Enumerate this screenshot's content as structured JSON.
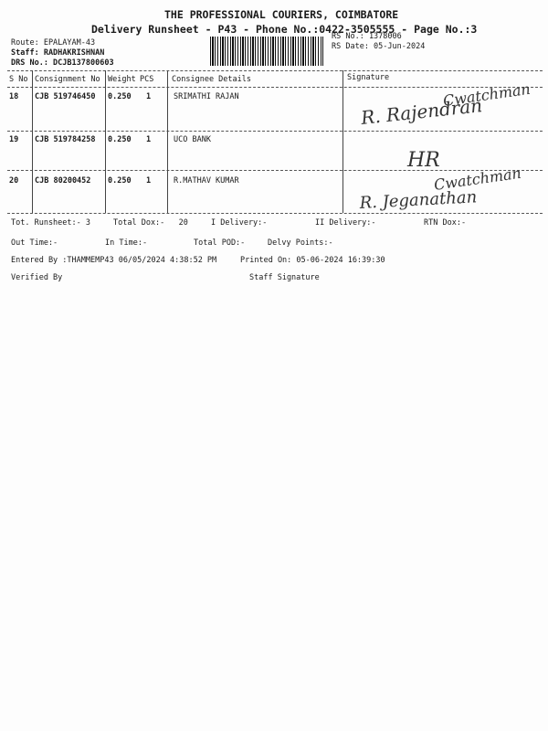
{
  "header": {
    "company": "THE PROFESSIONAL COURIERS, COIMBATORE",
    "subtitle": "Delivery Runsheet - P43 - Phone No.:0422-3505555 - Page No.:3",
    "route": "Route: EPALAYAM-43",
    "staff": "Staff: RADHAKRISHNAN",
    "drs": "DRS No.: DCJB137800603",
    "rs_no": "RS No.: 1378006",
    "rs_date": "RS Date: 05-Jun-2024"
  },
  "table": {
    "columns": [
      "S No",
      "Consignment No",
      "Weight",
      "PCS",
      "Consignee Details",
      "Signature"
    ],
    "rows": [
      {
        "sno": "18",
        "consignment": "CJB 519746450",
        "weight": "0.250",
        "pcs": "1",
        "consignee": "SRIMATHI RAJAN",
        "signature": [
          "Cwatchman",
          "R. Rajendran"
        ]
      },
      {
        "sno": "19",
        "consignment": "CJB 519784258",
        "weight": "0.250",
        "pcs": "1",
        "consignee": "UCO BANK",
        "signature": [
          "HR"
        ]
      },
      {
        "sno": "20",
        "consignment": "CJB 80200452",
        "weight": "0.250",
        "pcs": "1",
        "consignee": "R.MATHAV KUMAR",
        "signature": [
          "Cwatchman",
          "R. Jeganathan"
        ]
      }
    ]
  },
  "summary": {
    "tot_runsheet": "Tot. Runsheet:- 3",
    "total_dox": "Total Dox:-   20",
    "i_delivery": "I Delivery:-",
    "ii_delivery": "II Delivery:-",
    "rtn_dox": "RTN Dox:-",
    "out_time": "Out Time:-",
    "in_time": "In Time:-",
    "total_pod": "Total POD:-",
    "delvy_points": "Delvy Points:-",
    "entered_by": "Entered By :THAMMEMP43 06/05/2024 4:38:52 PM",
    "printed_on": "Printed On: 05-06-2024 16:39:30",
    "verified_by": "Verified By",
    "staff_signature": "Staff Signature"
  }
}
